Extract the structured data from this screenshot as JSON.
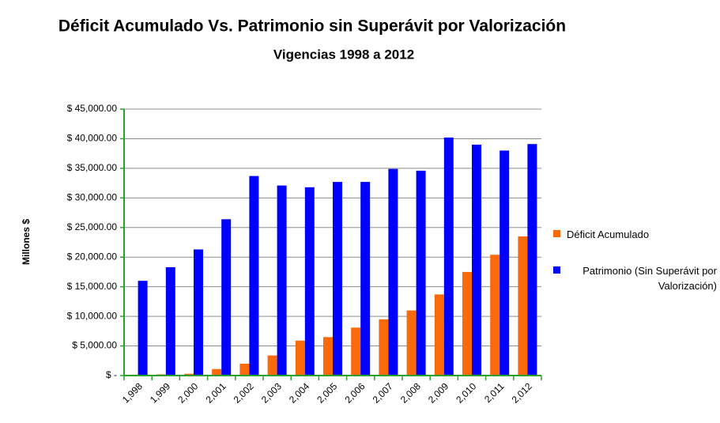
{
  "chart_data": {
    "type": "bar",
    "title": "Déficit Acumulado Vs.  Patrimonio sin Superávit por Valorización",
    "subtitle": "Vigencias 1998 a 2012",
    "y_label": "Millones $",
    "categories": [
      "1,998",
      "1,999",
      "2,000",
      "2,001",
      "2,002",
      "2,003",
      "2,004",
      "2,005",
      "2,006",
      "2,007",
      "2,008",
      "2,009",
      "2,010",
      "2,011",
      "2,012"
    ],
    "series": [
      {
        "name": "Déficit Acumulado",
        "color": "#fa6a0a",
        "values": [
          150,
          200,
          300,
          1100,
          2000,
          3400,
          5900,
          6500,
          8100,
          9500,
          11000,
          13700,
          17500,
          20400,
          23500
        ]
      },
      {
        "name": "Patrimonio (Sin Superávit por Valorización)",
        "color": "#0000ff",
        "values": [
          16000,
          18300,
          21300,
          26400,
          33700,
          32100,
          31800,
          32700,
          32700,
          34900,
          34600,
          40200,
          39000,
          38000,
          39100
        ]
      }
    ],
    "ylim": [
      0,
      45000
    ],
    "yticks": [
      {
        "value": 0,
        "label": "$ -"
      },
      {
        "value": 5000,
        "label": "$ 5,000.00"
      },
      {
        "value": 10000,
        "label": "$ 10,000.00"
      },
      {
        "value": 15000,
        "label": "$ 15,000.00"
      },
      {
        "value": 20000,
        "label": "$ 20,000.00"
      },
      {
        "value": 25000,
        "label": "$ 25,000.00"
      },
      {
        "value": 30000,
        "label": "$ 30,000.00"
      },
      {
        "value": 35000,
        "label": "$ 35,000.00"
      },
      {
        "value": 40000,
        "label": "$ 40,000.00"
      },
      {
        "value": 45000,
        "label": "$ 45,000.00"
      }
    ],
    "grid": true,
    "legend": "right"
  }
}
